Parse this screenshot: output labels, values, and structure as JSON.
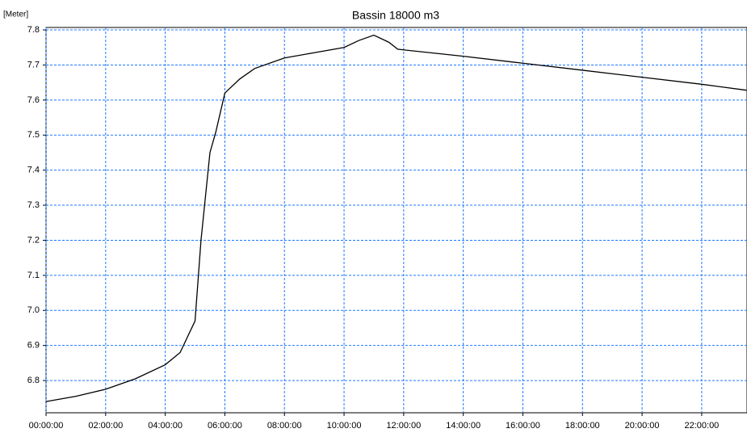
{
  "chart_data": {
    "type": "line",
    "title": "Bassin 18000 m3",
    "y_label": "[Meter]",
    "x": [
      0,
      1,
      2,
      3,
      4,
      4.5,
      5,
      5.2,
      5.5,
      5.7,
      6,
      6.5,
      7,
      8,
      9,
      10,
      10.5,
      11,
      11.5,
      11.8,
      12,
      14,
      16,
      18,
      20,
      22,
      23.5
    ],
    "series": [
      {
        "name": "Bassin 18000 m3",
        "color": "#000000",
        "values": [
          6.74,
          6.755,
          6.775,
          6.805,
          6.845,
          6.88,
          6.97,
          7.2,
          7.45,
          7.51,
          7.62,
          7.66,
          7.69,
          7.72,
          7.735,
          7.75,
          7.77,
          7.785,
          7.765,
          7.745,
          7.743,
          7.725,
          7.705,
          7.685,
          7.665,
          7.645,
          7.628
        ]
      }
    ],
    "xlim": [
      0,
      23.52
    ],
    "ylim": [
      6.708,
      7.807
    ],
    "xticks": [
      {
        "value": 0,
        "label": "00:00:00"
      },
      {
        "value": 2,
        "label": "02:00:00"
      },
      {
        "value": 4,
        "label": "04:00:00"
      },
      {
        "value": 6,
        "label": "06:00:00"
      },
      {
        "value": 8,
        "label": "08:00:00"
      },
      {
        "value": 10,
        "label": "10:00:00"
      },
      {
        "value": 12,
        "label": "12:00:00"
      },
      {
        "value": 14,
        "label": "14:00:00"
      },
      {
        "value": 16,
        "label": "16:00:00"
      },
      {
        "value": 18,
        "label": "18:00:00"
      },
      {
        "value": 20,
        "label": "20:00:00"
      },
      {
        "value": 22,
        "label": "22:00:00"
      }
    ],
    "yticks": [
      6.8,
      6.9,
      {
        "value": 7,
        "label": "7.0"
      },
      7.1,
      7.2,
      7.3,
      7.4,
      7.5,
      7.6,
      7.7,
      7.8
    ],
    "grid": true
  }
}
